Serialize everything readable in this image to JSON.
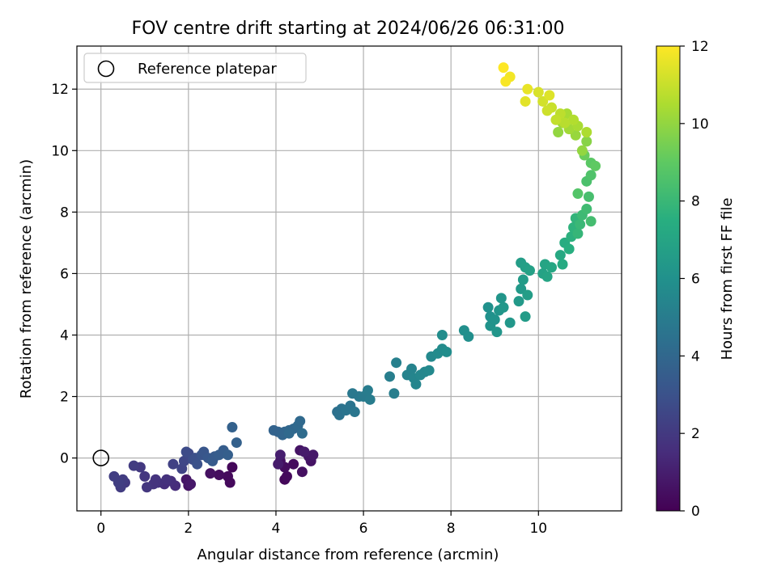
{
  "chart_data": {
    "type": "scatter",
    "title": "FOV centre drift starting at 2024/06/26 06:31:00",
    "xlabel": "Angular distance from reference (arcmin)",
    "ylabel": "Rotation from reference (arcmin)",
    "xlim": [
      -0.55,
      11.9
    ],
    "ylim": [
      -1.72,
      13.4
    ],
    "xticks": [
      0,
      2,
      4,
      6,
      8,
      10
    ],
    "yticks": [
      0,
      2,
      4,
      6,
      8,
      10,
      12
    ],
    "grid": true,
    "legend": {
      "placement": "top-left",
      "entries": [
        "Reference platepar"
      ]
    },
    "reference_point": {
      "x": 0,
      "y": 0,
      "label": "Reference platepar"
    },
    "colorbar": {
      "label": "Hours from first FF file",
      "range": [
        0,
        12
      ],
      "ticks": [
        0,
        2,
        4,
        6,
        8,
        10,
        12
      ],
      "colormap": "viridis"
    },
    "points": [
      {
        "x": 3.0,
        "y": -0.3,
        "h": 0.2
      },
      {
        "x": 2.9,
        "y": -0.6,
        "h": 0.3
      },
      {
        "x": 2.95,
        "y": -0.8,
        "h": 0.3
      },
      {
        "x": 2.7,
        "y": -0.55,
        "h": 0.4
      },
      {
        "x": 2.5,
        "y": -0.5,
        "h": 0.5
      },
      {
        "x": 2.0,
        "y": -0.9,
        "h": 0.6
      },
      {
        "x": 1.95,
        "y": -0.7,
        "h": 0.7
      },
      {
        "x": 2.05,
        "y": -0.85,
        "h": 0.8
      },
      {
        "x": 4.1,
        "y": -0.1,
        "h": 0.5
      },
      {
        "x": 4.2,
        "y": -0.3,
        "h": 0.4
      },
      {
        "x": 4.25,
        "y": -0.6,
        "h": 0.3
      },
      {
        "x": 4.2,
        "y": -0.7,
        "h": 0.2
      },
      {
        "x": 4.4,
        "y": -0.2,
        "h": 0.35
      },
      {
        "x": 4.55,
        "y": 0.25,
        "h": 0.6
      },
      {
        "x": 4.6,
        "y": -0.45,
        "h": 0.5
      },
      {
        "x": 4.75,
        "y": 0.05,
        "h": 0.7
      },
      {
        "x": 4.8,
        "y": -0.1,
        "h": 0.6
      },
      {
        "x": 4.85,
        "y": 0.1,
        "h": 0.8
      },
      {
        "x": 4.65,
        "y": 0.2,
        "h": 0.9
      },
      {
        "x": 4.1,
        "y": 0.1,
        "h": 1.0
      },
      {
        "x": 4.05,
        "y": -0.2,
        "h": 0.9
      },
      {
        "x": 1.7,
        "y": -0.9,
        "h": 1.5
      },
      {
        "x": 1.6,
        "y": -0.75,
        "h": 1.6
      },
      {
        "x": 1.45,
        "y": -0.85,
        "h": 1.6
      },
      {
        "x": 1.3,
        "y": -0.8,
        "h": 1.7
      },
      {
        "x": 1.5,
        "y": -0.7,
        "h": 1.7
      },
      {
        "x": 1.25,
        "y": -0.7,
        "h": 1.8
      },
      {
        "x": 1.2,
        "y": -0.85,
        "h": 1.8
      },
      {
        "x": 1.05,
        "y": -0.95,
        "h": 1.9
      },
      {
        "x": 1.0,
        "y": -0.6,
        "h": 1.9
      },
      {
        "x": 0.9,
        "y": -0.3,
        "h": 2.0
      },
      {
        "x": 0.75,
        "y": -0.25,
        "h": 2.1
      },
      {
        "x": 0.55,
        "y": -0.8,
        "h": 2.0
      },
      {
        "x": 0.5,
        "y": -0.7,
        "h": 2.1
      },
      {
        "x": 0.45,
        "y": -0.95,
        "h": 2.1
      },
      {
        "x": 0.4,
        "y": -0.8,
        "h": 2.2
      },
      {
        "x": 0.3,
        "y": -0.6,
        "h": 2.2
      },
      {
        "x": 1.65,
        "y": -0.2,
        "h": 2.3
      },
      {
        "x": 1.85,
        "y": -0.35,
        "h": 2.4
      },
      {
        "x": 1.9,
        "y": -0.1,
        "h": 2.5
      },
      {
        "x": 2.0,
        "y": 0.15,
        "h": 2.6
      },
      {
        "x": 1.95,
        "y": 0.2,
        "h": 2.7
      },
      {
        "x": 2.1,
        "y": -0.05,
        "h": 2.8
      },
      {
        "x": 2.15,
        "y": 0.0,
        "h": 2.9
      },
      {
        "x": 2.2,
        "y": -0.2,
        "h": 3.0
      },
      {
        "x": 2.3,
        "y": 0.1,
        "h": 3.1
      },
      {
        "x": 2.35,
        "y": 0.2,
        "h": 3.2
      },
      {
        "x": 2.45,
        "y": 0.0,
        "h": 3.3
      },
      {
        "x": 2.55,
        "y": -0.1,
        "h": 3.4
      },
      {
        "x": 2.6,
        "y": 0.05,
        "h": 3.4
      },
      {
        "x": 2.7,
        "y": 0.1,
        "h": 3.5
      },
      {
        "x": 2.8,
        "y": 0.25,
        "h": 3.5
      },
      {
        "x": 2.9,
        "y": 0.1,
        "h": 3.6
      },
      {
        "x": 3.0,
        "y": 1.0,
        "h": 3.7
      },
      {
        "x": 3.1,
        "y": 0.5,
        "h": 3.7
      },
      {
        "x": 3.95,
        "y": 0.9,
        "h": 3.8
      },
      {
        "x": 4.05,
        "y": 0.85,
        "h": 3.8
      },
      {
        "x": 4.15,
        "y": 0.75,
        "h": 3.9
      },
      {
        "x": 4.2,
        "y": 0.85,
        "h": 3.9
      },
      {
        "x": 4.3,
        "y": 0.9,
        "h": 4.0
      },
      {
        "x": 4.4,
        "y": 0.95,
        "h": 4.0
      },
      {
        "x": 4.5,
        "y": 1.05,
        "h": 4.1
      },
      {
        "x": 4.55,
        "y": 1.2,
        "h": 4.1
      },
      {
        "x": 4.6,
        "y": 0.8,
        "h": 4.2
      },
      {
        "x": 4.3,
        "y": 0.8,
        "h": 4.1
      },
      {
        "x": 5.4,
        "y": 1.5,
        "h": 4.4
      },
      {
        "x": 5.5,
        "y": 1.6,
        "h": 4.5
      },
      {
        "x": 5.6,
        "y": 1.55,
        "h": 4.6
      },
      {
        "x": 5.7,
        "y": 1.7,
        "h": 4.6
      },
      {
        "x": 5.8,
        "y": 1.5,
        "h": 4.7
      },
      {
        "x": 5.75,
        "y": 2.1,
        "h": 4.8
      },
      {
        "x": 5.9,
        "y": 2.0,
        "h": 4.8
      },
      {
        "x": 6.0,
        "y": 2.0,
        "h": 4.9
      },
      {
        "x": 6.1,
        "y": 2.2,
        "h": 5.0
      },
      {
        "x": 6.15,
        "y": 1.9,
        "h": 5.0
      },
      {
        "x": 5.45,
        "y": 1.4,
        "h": 4.5
      },
      {
        "x": 6.6,
        "y": 2.65,
        "h": 5.1
      },
      {
        "x": 6.7,
        "y": 2.1,
        "h": 5.1
      },
      {
        "x": 6.75,
        "y": 3.1,
        "h": 5.2
      },
      {
        "x": 7.0,
        "y": 2.7,
        "h": 5.3
      },
      {
        "x": 7.1,
        "y": 2.9,
        "h": 5.3
      },
      {
        "x": 7.15,
        "y": 2.6,
        "h": 5.4
      },
      {
        "x": 7.2,
        "y": 2.4,
        "h": 5.4
      },
      {
        "x": 7.3,
        "y": 2.7,
        "h": 5.5
      },
      {
        "x": 7.4,
        "y": 2.8,
        "h": 5.5
      },
      {
        "x": 7.5,
        "y": 2.85,
        "h": 5.6
      },
      {
        "x": 7.55,
        "y": 3.3,
        "h": 5.6
      },
      {
        "x": 7.7,
        "y": 3.4,
        "h": 5.7
      },
      {
        "x": 7.8,
        "y": 3.55,
        "h": 5.7
      },
      {
        "x": 7.9,
        "y": 3.45,
        "h": 5.8
      },
      {
        "x": 7.8,
        "y": 4.0,
        "h": 5.8
      },
      {
        "x": 8.3,
        "y": 4.15,
        "h": 5.9
      },
      {
        "x": 8.4,
        "y": 3.95,
        "h": 5.9
      },
      {
        "x": 8.85,
        "y": 4.9,
        "h": 6.0
      },
      {
        "x": 8.9,
        "y": 4.6,
        "h": 6.0
      },
      {
        "x": 8.9,
        "y": 4.3,
        "h": 6.1
      },
      {
        "x": 9.0,
        "y": 4.5,
        "h": 6.1
      },
      {
        "x": 9.05,
        "y": 4.1,
        "h": 6.2
      },
      {
        "x": 9.1,
        "y": 4.8,
        "h": 6.2
      },
      {
        "x": 9.15,
        "y": 5.2,
        "h": 6.2
      },
      {
        "x": 9.2,
        "y": 4.9,
        "h": 6.3
      },
      {
        "x": 9.35,
        "y": 4.4,
        "h": 6.3
      },
      {
        "x": 9.55,
        "y": 5.1,
        "h": 6.4
      },
      {
        "x": 9.6,
        "y": 5.5,
        "h": 6.4
      },
      {
        "x": 9.65,
        "y": 5.8,
        "h": 6.5
      },
      {
        "x": 9.7,
        "y": 4.6,
        "h": 6.5
      },
      {
        "x": 9.75,
        "y": 5.3,
        "h": 6.6
      },
      {
        "x": 9.6,
        "y": 6.35,
        "h": 6.6
      },
      {
        "x": 9.7,
        "y": 6.2,
        "h": 6.7
      },
      {
        "x": 9.8,
        "y": 6.1,
        "h": 6.8
      },
      {
        "x": 10.1,
        "y": 6.0,
        "h": 6.9
      },
      {
        "x": 10.15,
        "y": 6.3,
        "h": 7.0
      },
      {
        "x": 10.2,
        "y": 5.9,
        "h": 7.0
      },
      {
        "x": 10.3,
        "y": 6.2,
        "h": 7.1
      },
      {
        "x": 10.5,
        "y": 6.6,
        "h": 7.2
      },
      {
        "x": 10.55,
        "y": 6.3,
        "h": 7.3
      },
      {
        "x": 10.6,
        "y": 7.0,
        "h": 7.4
      },
      {
        "x": 10.7,
        "y": 6.8,
        "h": 7.5
      },
      {
        "x": 10.75,
        "y": 7.2,
        "h": 7.6
      },
      {
        "x": 10.8,
        "y": 7.5,
        "h": 7.7
      },
      {
        "x": 10.85,
        "y": 7.8,
        "h": 7.8
      },
      {
        "x": 10.9,
        "y": 7.3,
        "h": 7.9
      },
      {
        "x": 10.95,
        "y": 7.6,
        "h": 8.0
      },
      {
        "x": 11.0,
        "y": 7.9,
        "h": 8.1
      },
      {
        "x": 11.1,
        "y": 8.1,
        "h": 8.2
      },
      {
        "x": 11.2,
        "y": 7.7,
        "h": 8.3
      },
      {
        "x": 11.15,
        "y": 8.5,
        "h": 8.4
      },
      {
        "x": 11.1,
        "y": 9.0,
        "h": 8.5
      },
      {
        "x": 11.2,
        "y": 9.2,
        "h": 8.6
      },
      {
        "x": 10.9,
        "y": 8.6,
        "h": 8.7
      },
      {
        "x": 11.2,
        "y": 9.6,
        "h": 8.9
      },
      {
        "x": 11.3,
        "y": 9.5,
        "h": 9.0
      },
      {
        "x": 11.05,
        "y": 9.85,
        "h": 9.2
      },
      {
        "x": 11.1,
        "y": 10.3,
        "h": 9.8
      },
      {
        "x": 11.0,
        "y": 10.0,
        "h": 10.0
      },
      {
        "x": 10.85,
        "y": 10.5,
        "h": 10.1
      },
      {
        "x": 10.7,
        "y": 10.7,
        "h": 10.3
      },
      {
        "x": 10.9,
        "y": 10.8,
        "h": 10.4
      },
      {
        "x": 11.1,
        "y": 10.6,
        "h": 10.5
      },
      {
        "x": 10.8,
        "y": 11.0,
        "h": 10.6
      },
      {
        "x": 10.6,
        "y": 10.9,
        "h": 10.7
      },
      {
        "x": 10.5,
        "y": 11.2,
        "h": 10.8
      },
      {
        "x": 10.4,
        "y": 11.0,
        "h": 10.9
      },
      {
        "x": 10.3,
        "y": 11.4,
        "h": 11.0
      },
      {
        "x": 10.2,
        "y": 11.3,
        "h": 11.1
      },
      {
        "x": 10.1,
        "y": 11.6,
        "h": 11.2
      },
      {
        "x": 10.0,
        "y": 11.9,
        "h": 11.3
      },
      {
        "x": 10.25,
        "y": 11.8,
        "h": 11.4
      },
      {
        "x": 9.7,
        "y": 11.6,
        "h": 11.5
      },
      {
        "x": 9.75,
        "y": 12.0,
        "h": 11.6
      },
      {
        "x": 9.35,
        "y": 12.4,
        "h": 11.8
      },
      {
        "x": 9.25,
        "y": 12.25,
        "h": 11.9
      },
      {
        "x": 9.2,
        "y": 12.7,
        "h": 12.0
      },
      {
        "x": 10.55,
        "y": 10.9,
        "h": 10.2
      },
      {
        "x": 10.65,
        "y": 11.2,
        "h": 10.4
      },
      {
        "x": 10.45,
        "y": 10.6,
        "h": 10.0
      }
    ]
  }
}
